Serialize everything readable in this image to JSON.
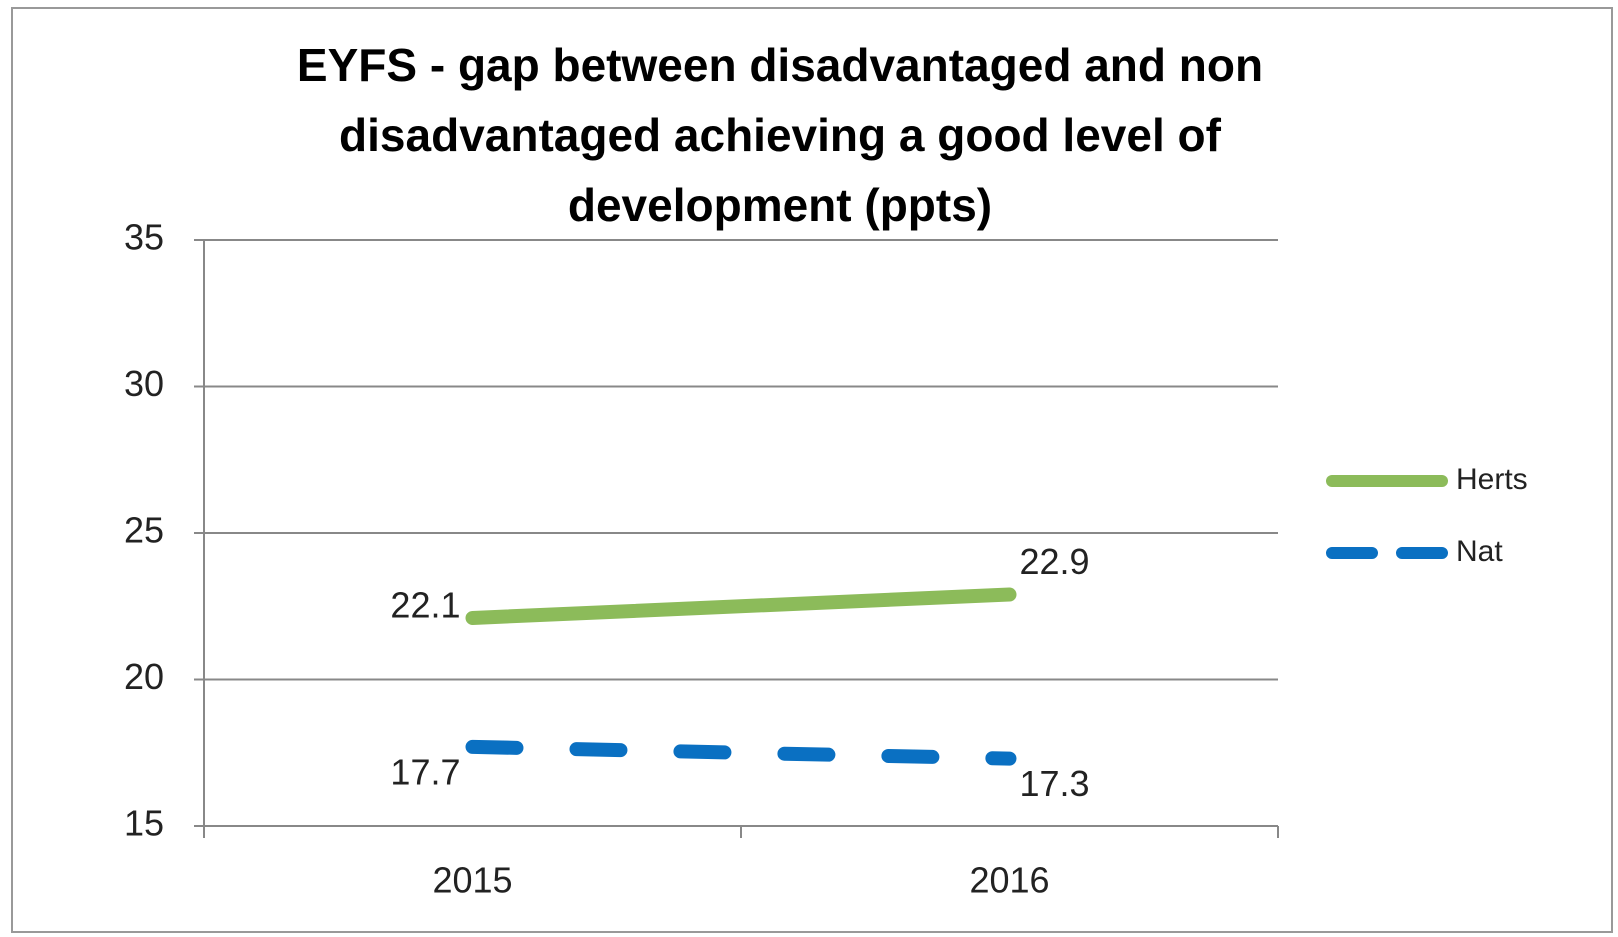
{
  "chart_data": {
    "type": "line",
    "title": "EYFS - gap between disadvantaged and non disadvantaged achieving a good level of development (ppts)",
    "categories": [
      "2015",
      "2016"
    ],
    "series": [
      {
        "name": "Herts",
        "color": "#8cbb5a",
        "style": "solid",
        "values": [
          22.1,
          22.9
        ]
      },
      {
        "name": "Nat",
        "color": "#0a70c2",
        "style": "dashed",
        "values": [
          17.7,
          17.3
        ]
      }
    ],
    "ylim": [
      15,
      35
    ],
    "yticks": [
      15,
      20,
      25,
      30,
      35
    ],
    "grid": true,
    "legend": "right"
  }
}
